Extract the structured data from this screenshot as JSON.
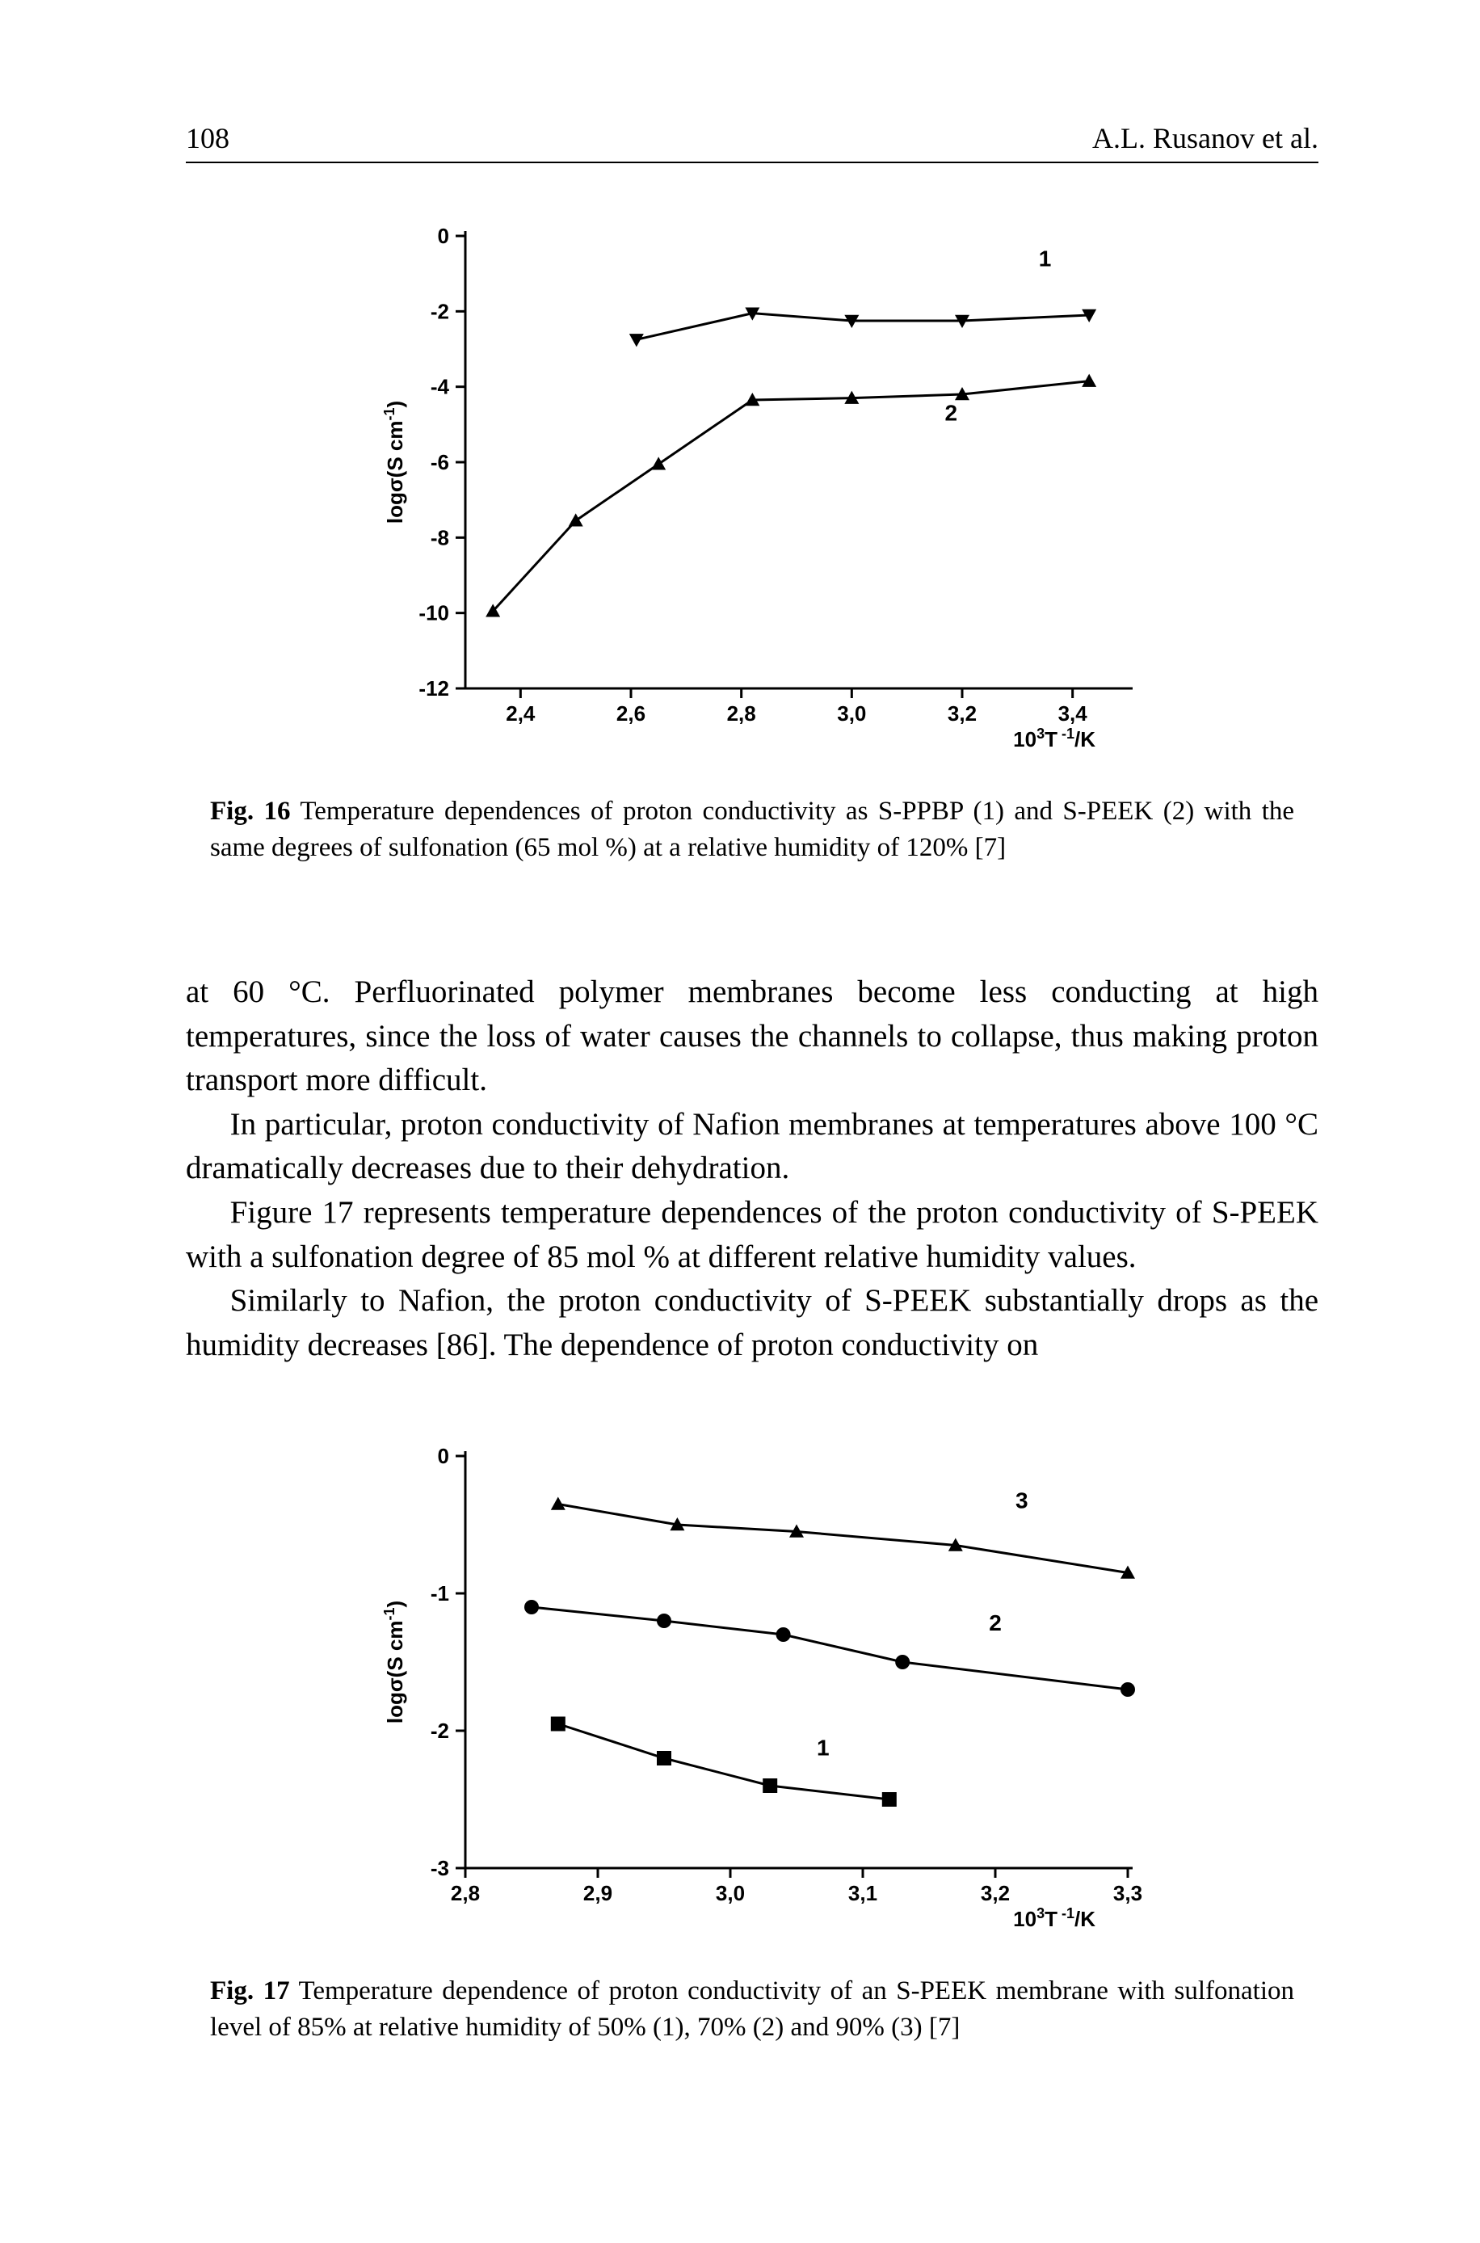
{
  "page": {
    "number": "108",
    "running_head": "A.L. Rusanov et al."
  },
  "fig16": {
    "type": "line",
    "caption_label": "Fig. 16",
    "caption_text": "Temperature dependences of proton conductivity as S-PPBP (1) and S-PEEK (2) with the same degrees of sulfonation (65 mol %) at a relative humidity of 120% [7]",
    "x_axis": {
      "ticks": [
        "2,4",
        "2,6",
        "2,8",
        "3,0",
        "3,2",
        "3,4"
      ],
      "tick_vals": [
        2.4,
        2.6,
        2.8,
        3.0,
        3.2,
        3.4
      ],
      "xlim": [
        2.3,
        3.5
      ],
      "unit_html": "10<tspan baseline-shift='super' font-size='18'>3</tspan>T<tspan baseline-shift='super' font-size='18'>-1</tspan>/K",
      "unit_plain": "10^3 T^-1 / K"
    },
    "y_axis": {
      "ticks": [
        "0",
        "-2",
        "-4",
        "-6",
        "-8",
        "-10",
        "-12"
      ],
      "tick_vals": [
        0,
        -2,
        -4,
        -6,
        -8,
        -10,
        -12
      ],
      "ylim": [
        -12,
        0
      ],
      "label_plain": "logσ(S cm^-1)"
    },
    "series": [
      {
        "name": "1",
        "marker": "triangle-down",
        "points": [
          {
            "x": 2.61,
            "y": -2.75
          },
          {
            "x": 2.82,
            "y": -2.05
          },
          {
            "x": 3.0,
            "y": -2.25
          },
          {
            "x": 3.2,
            "y": -2.25
          },
          {
            "x": 3.43,
            "y": -2.1
          }
        ],
        "label_pos": {
          "x": 3.35,
          "y": -0.8
        }
      },
      {
        "name": "2",
        "marker": "triangle-up",
        "points": [
          {
            "x": 2.35,
            "y": -9.95
          },
          {
            "x": 2.5,
            "y": -7.55
          },
          {
            "x": 2.65,
            "y": -6.05
          },
          {
            "x": 2.82,
            "y": -4.35
          },
          {
            "x": 3.0,
            "y": -4.3
          },
          {
            "x": 3.2,
            "y": -4.2
          },
          {
            "x": 3.43,
            "y": -3.85
          }
        ],
        "label_pos": {
          "x": 3.18,
          "y": -4.9
        }
      }
    ],
    "colors": {
      "line": "#000000",
      "marker": "#000000",
      "axis": "#000000",
      "background": "#ffffff"
    },
    "line_width": 3,
    "marker_size": 9,
    "tick_fontsize": 26,
    "label_fontsize": 26
  },
  "body": {
    "para1": "at 60 °C. Perfluorinated polymer membranes become less conducting at high temperatures, since the loss of water causes the channels to collapse, thus making proton transport more difficult.",
    "para2": "In particular, proton conductivity of Nafion membranes at temperatures above 100 °C dramatically decreases due to their dehydration.",
    "para3": "Figure 17 represents temperature dependences of the proton conductivity of S-PEEK with a sulfonation degree of 85 mol % at different relative humidity values.",
    "para4": "Similarly to Nafion, the proton conductivity of S-PEEK substantially drops as the humidity decreases [86]. The dependence of proton conductivity on"
  },
  "fig17": {
    "type": "line",
    "caption_label": "Fig. 17",
    "caption_text": "Temperature dependence of proton conductivity of an S-PEEK membrane with sulfonation level of 85% at relative humidity of 50% (1), 70% (2) and 90% (3) [7]",
    "x_axis": {
      "ticks": [
        "2,8",
        "2,9",
        "3,0",
        "3,1",
        "3,2",
        "3,3"
      ],
      "tick_vals": [
        2.8,
        2.9,
        3.0,
        3.1,
        3.2,
        3.3
      ],
      "xlim": [
        2.8,
        3.3
      ],
      "unit_plain": "10^3 T^-1 / K"
    },
    "y_axis": {
      "ticks": [
        "0",
        "-1",
        "-2",
        "-3"
      ],
      "tick_vals": [
        0,
        -1,
        -2,
        -3
      ],
      "ylim": [
        -3,
        0
      ],
      "label_plain": "logσ(S cm^-1)"
    },
    "series": [
      {
        "name": "3",
        "marker": "triangle-up",
        "points": [
          {
            "x": 2.87,
            "y": -0.35
          },
          {
            "x": 2.96,
            "y": -0.5
          },
          {
            "x": 3.05,
            "y": -0.55
          },
          {
            "x": 3.17,
            "y": -0.65
          },
          {
            "x": 3.3,
            "y": -0.85
          }
        ],
        "label_pos": {
          "x": 3.22,
          "y": -0.38
        }
      },
      {
        "name": "2",
        "marker": "circle",
        "points": [
          {
            "x": 2.85,
            "y": -1.1
          },
          {
            "x": 2.95,
            "y": -1.2
          },
          {
            "x": 3.04,
            "y": -1.3
          },
          {
            "x": 3.13,
            "y": -1.5
          },
          {
            "x": 3.3,
            "y": -1.7
          }
        ],
        "label_pos": {
          "x": 3.2,
          "y": -1.27
        }
      },
      {
        "name": "1",
        "marker": "square",
        "points": [
          {
            "x": 2.87,
            "y": -1.95
          },
          {
            "x": 2.95,
            "y": -2.2
          },
          {
            "x": 3.03,
            "y": -2.4
          },
          {
            "x": 3.12,
            "y": -2.5
          }
        ],
        "label_pos": {
          "x": 3.07,
          "y": -2.18
        }
      }
    ],
    "colors": {
      "line": "#000000",
      "marker": "#000000",
      "axis": "#000000",
      "background": "#ffffff"
    },
    "line_width": 3,
    "marker_size": 9,
    "tick_fontsize": 26,
    "label_fontsize": 26
  }
}
